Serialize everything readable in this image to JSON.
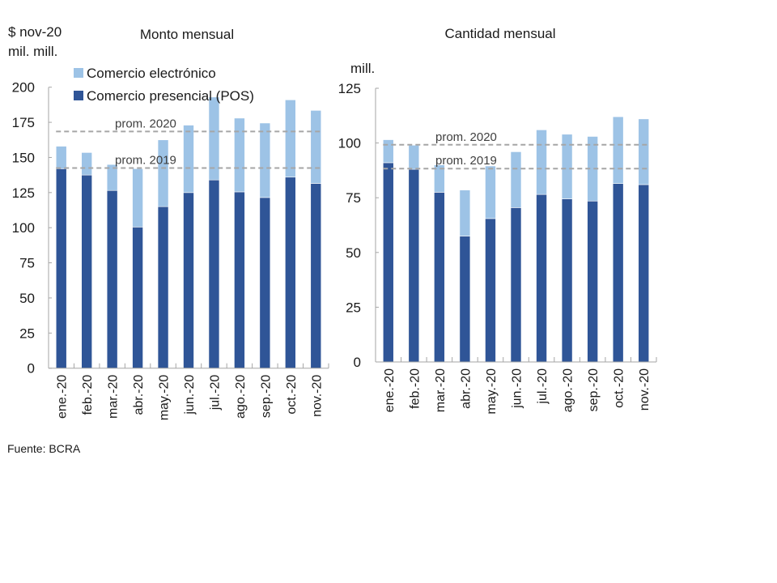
{
  "source": "Fuente: BCRA",
  "colors": {
    "ecommerce": "#9dc3e6",
    "pos": "#2f5597",
    "avg_line": "#a6a6a6",
    "axis": "#a6a6a6"
  },
  "legend": {
    "ecommerce": "Comercio electrónico",
    "pos": "Comercio presencial (POS)"
  },
  "chart_data": [
    {
      "type": "bar",
      "stacked": true,
      "title": "Monto mensual",
      "ylabel_line1": "$ nov-20",
      "ylabel_line2": "mil. mill.",
      "xlabel": "",
      "ylim": [
        0,
        200
      ],
      "yticks": [
        "0",
        "25",
        "50",
        "75",
        "100",
        "125",
        "150",
        "175",
        "200"
      ],
      "ytick_values": [
        0,
        25,
        50,
        75,
        100,
        125,
        150,
        175,
        200
      ],
      "categories": [
        "ene.-20",
        "feb.-20",
        "mar.-20",
        "abr.-20",
        "may.-20",
        "jun.-20",
        "jul.-20",
        "ago.-20",
        "sep.-20",
        "oct.-20",
        "nov.-20"
      ],
      "series": [
        {
          "name": "Comercio presencial (POS)",
          "values": [
            142,
            137.5,
            126.5,
            100.5,
            115,
            125,
            134,
            125.5,
            121.5,
            136,
            131.5
          ]
        },
        {
          "name": "Comercio electrónico",
          "values": [
            16,
            16,
            18.5,
            41.5,
            47.5,
            48,
            59,
            52.5,
            53,
            55,
            52
          ]
        }
      ],
      "totals": [
        158,
        153.5,
        145,
        142,
        162.5,
        173,
        193,
        178,
        174.5,
        191,
        183.5
      ],
      "reference_lines": [
        {
          "label": "prom. 2020",
          "value": 168.5
        },
        {
          "label": "prom. 2019",
          "value": 142.5
        }
      ],
      "legend_position": "top-left",
      "grid": false
    },
    {
      "type": "bar",
      "stacked": true,
      "title": "Cantidad mensual",
      "ylabel_line1": "mill.",
      "xlabel": "",
      "ylim": [
        0,
        125
      ],
      "yticks": [
        "0",
        "25",
        "50",
        "75",
        "100",
        "125"
      ],
      "ytick_values": [
        0,
        25,
        50,
        75,
        100,
        125
      ],
      "categories": [
        "ene.-20",
        "feb.-20",
        "mar.-20",
        "abr.-20",
        "may.-20",
        "jun.-20",
        "jul.-20",
        "ago.-20",
        "sep.-20",
        "oct.-20",
        "nov.-20"
      ],
      "series": [
        {
          "name": "Comercio presencial (POS)",
          "values": [
            91,
            88,
            77.5,
            57.5,
            65.5,
            70.5,
            76.5,
            74.5,
            73.5,
            81.5,
            81
          ]
        },
        {
          "name": "Comercio electrónico",
          "values": [
            10.5,
            11,
            12.5,
            21,
            24,
            25.5,
            29.5,
            29.5,
            29.5,
            30.5,
            30
          ]
        }
      ],
      "totals": [
        101.5,
        99,
        90,
        78.5,
        89.5,
        96,
        106,
        104,
        103,
        112,
        111
      ],
      "reference_lines": [
        {
          "label": "prom. 2020",
          "value": 99.2
        },
        {
          "label": "prom. 2019",
          "value": 88.3
        }
      ],
      "grid": false
    }
  ]
}
